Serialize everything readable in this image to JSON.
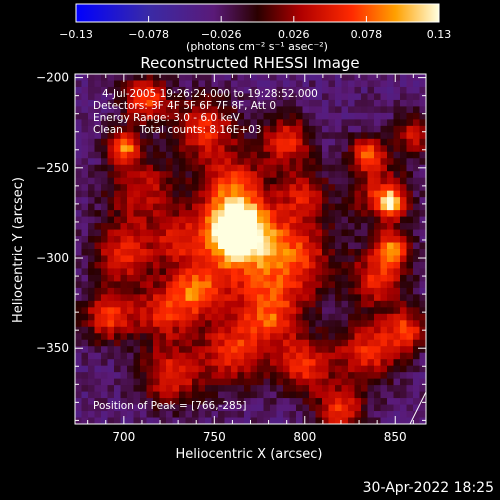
{
  "chart_data": {
    "type": "heatmap",
    "title": "Reconstructed RHESSI Image",
    "xlabel": "Heliocentric X (arcsec)",
    "ylabel": "Heliocentric Y (arcsec)",
    "xlim": [
      673,
      867
    ],
    "ylim": [
      -392,
      -198
    ],
    "xticks": [
      700,
      750,
      800,
      850
    ],
    "xtick_labels": [
      "700",
      "750",
      "800",
      "850"
    ],
    "yticks": [
      -200,
      -250,
      -300,
      -350
    ],
    "ytick_labels": [
      "−200",
      "−250",
      "−300",
      "−350"
    ],
    "colorbar": {
      "range": [
        -0.13,
        0.13
      ],
      "ticks": [
        -0.13,
        -0.078,
        -0.026,
        0.026,
        0.078,
        0.13
      ],
      "tick_labels": [
        "−0.13",
        "−0.078",
        "−0.026",
        "0.026",
        "0.078",
        "0.13"
      ],
      "unit_label": "(photons cm⁻² s⁻¹ asec⁻²)"
    },
    "annotations": [
      "4-Jul-2005 19:26:24.000 to 19:28:52.000",
      "Detectors: 3F 4F 5F 6F 7F 8F, Att 0",
      "Energy Range: 3.0 - 6.0 keV",
      "Clean     Total counts: 8.16E+03"
    ],
    "peak_label": "Position of Peak = [766,-285]",
    "peak": {
      "x": 766,
      "y": -285,
      "value": 0.13
    },
    "sources": [
      {
        "x": 762,
        "y": -284,
        "value": 0.128,
        "radius": 12
      },
      {
        "x": 770,
        "y": -298,
        "value": 0.05,
        "radius": 22
      },
      {
        "x": 700,
        "y": -238,
        "value": 0.09,
        "radius": 6
      },
      {
        "x": 712,
        "y": -212,
        "value": 0.07,
        "radius": 9
      },
      {
        "x": 745,
        "y": -228,
        "value": 0.06,
        "radius": 12
      },
      {
        "x": 790,
        "y": -235,
        "value": 0.055,
        "radius": 10
      },
      {
        "x": 835,
        "y": -242,
        "value": 0.07,
        "radius": 7
      },
      {
        "x": 848,
        "y": -270,
        "value": 0.085,
        "radius": 5
      },
      {
        "x": 842,
        "y": -265,
        "value": 0.05,
        "radius": 11
      },
      {
        "x": 710,
        "y": -262,
        "value": 0.04,
        "radius": 14
      },
      {
        "x": 700,
        "y": -298,
        "value": 0.055,
        "radius": 12
      },
      {
        "x": 692,
        "y": -332,
        "value": 0.065,
        "radius": 10
      },
      {
        "x": 722,
        "y": -330,
        "value": 0.05,
        "radius": 11
      },
      {
        "x": 740,
        "y": -318,
        "value": 0.06,
        "radius": 10
      },
      {
        "x": 726,
        "y": -365,
        "value": 0.055,
        "radius": 12
      },
      {
        "x": 760,
        "y": -352,
        "value": 0.055,
        "radius": 13
      },
      {
        "x": 782,
        "y": -332,
        "value": 0.05,
        "radius": 12
      },
      {
        "x": 800,
        "y": -360,
        "value": 0.06,
        "radius": 11
      },
      {
        "x": 820,
        "y": -385,
        "value": 0.06,
        "radius": 9
      },
      {
        "x": 796,
        "y": -300,
        "value": 0.035,
        "radius": 14
      },
      {
        "x": 840,
        "y": -312,
        "value": 0.055,
        "radius": 11
      },
      {
        "x": 848,
        "y": -295,
        "value": 0.075,
        "radius": 7
      },
      {
        "x": 835,
        "y": -352,
        "value": 0.06,
        "radius": 12
      },
      {
        "x": 856,
        "y": -340,
        "value": 0.06,
        "radius": 8
      },
      {
        "x": 760,
        "y": -258,
        "value": 0.045,
        "radius": 12
      },
      {
        "x": 800,
        "y": -265,
        "value": 0.035,
        "radius": 10
      },
      {
        "x": 730,
        "y": -290,
        "value": 0.03,
        "radius": 10
      },
      {
        "x": 860,
        "y": -232,
        "value": 0.04,
        "radius": 8
      }
    ],
    "background_level": -0.03
  },
  "footer": {
    "timestamp": "30-Apr-2022 18:25"
  }
}
